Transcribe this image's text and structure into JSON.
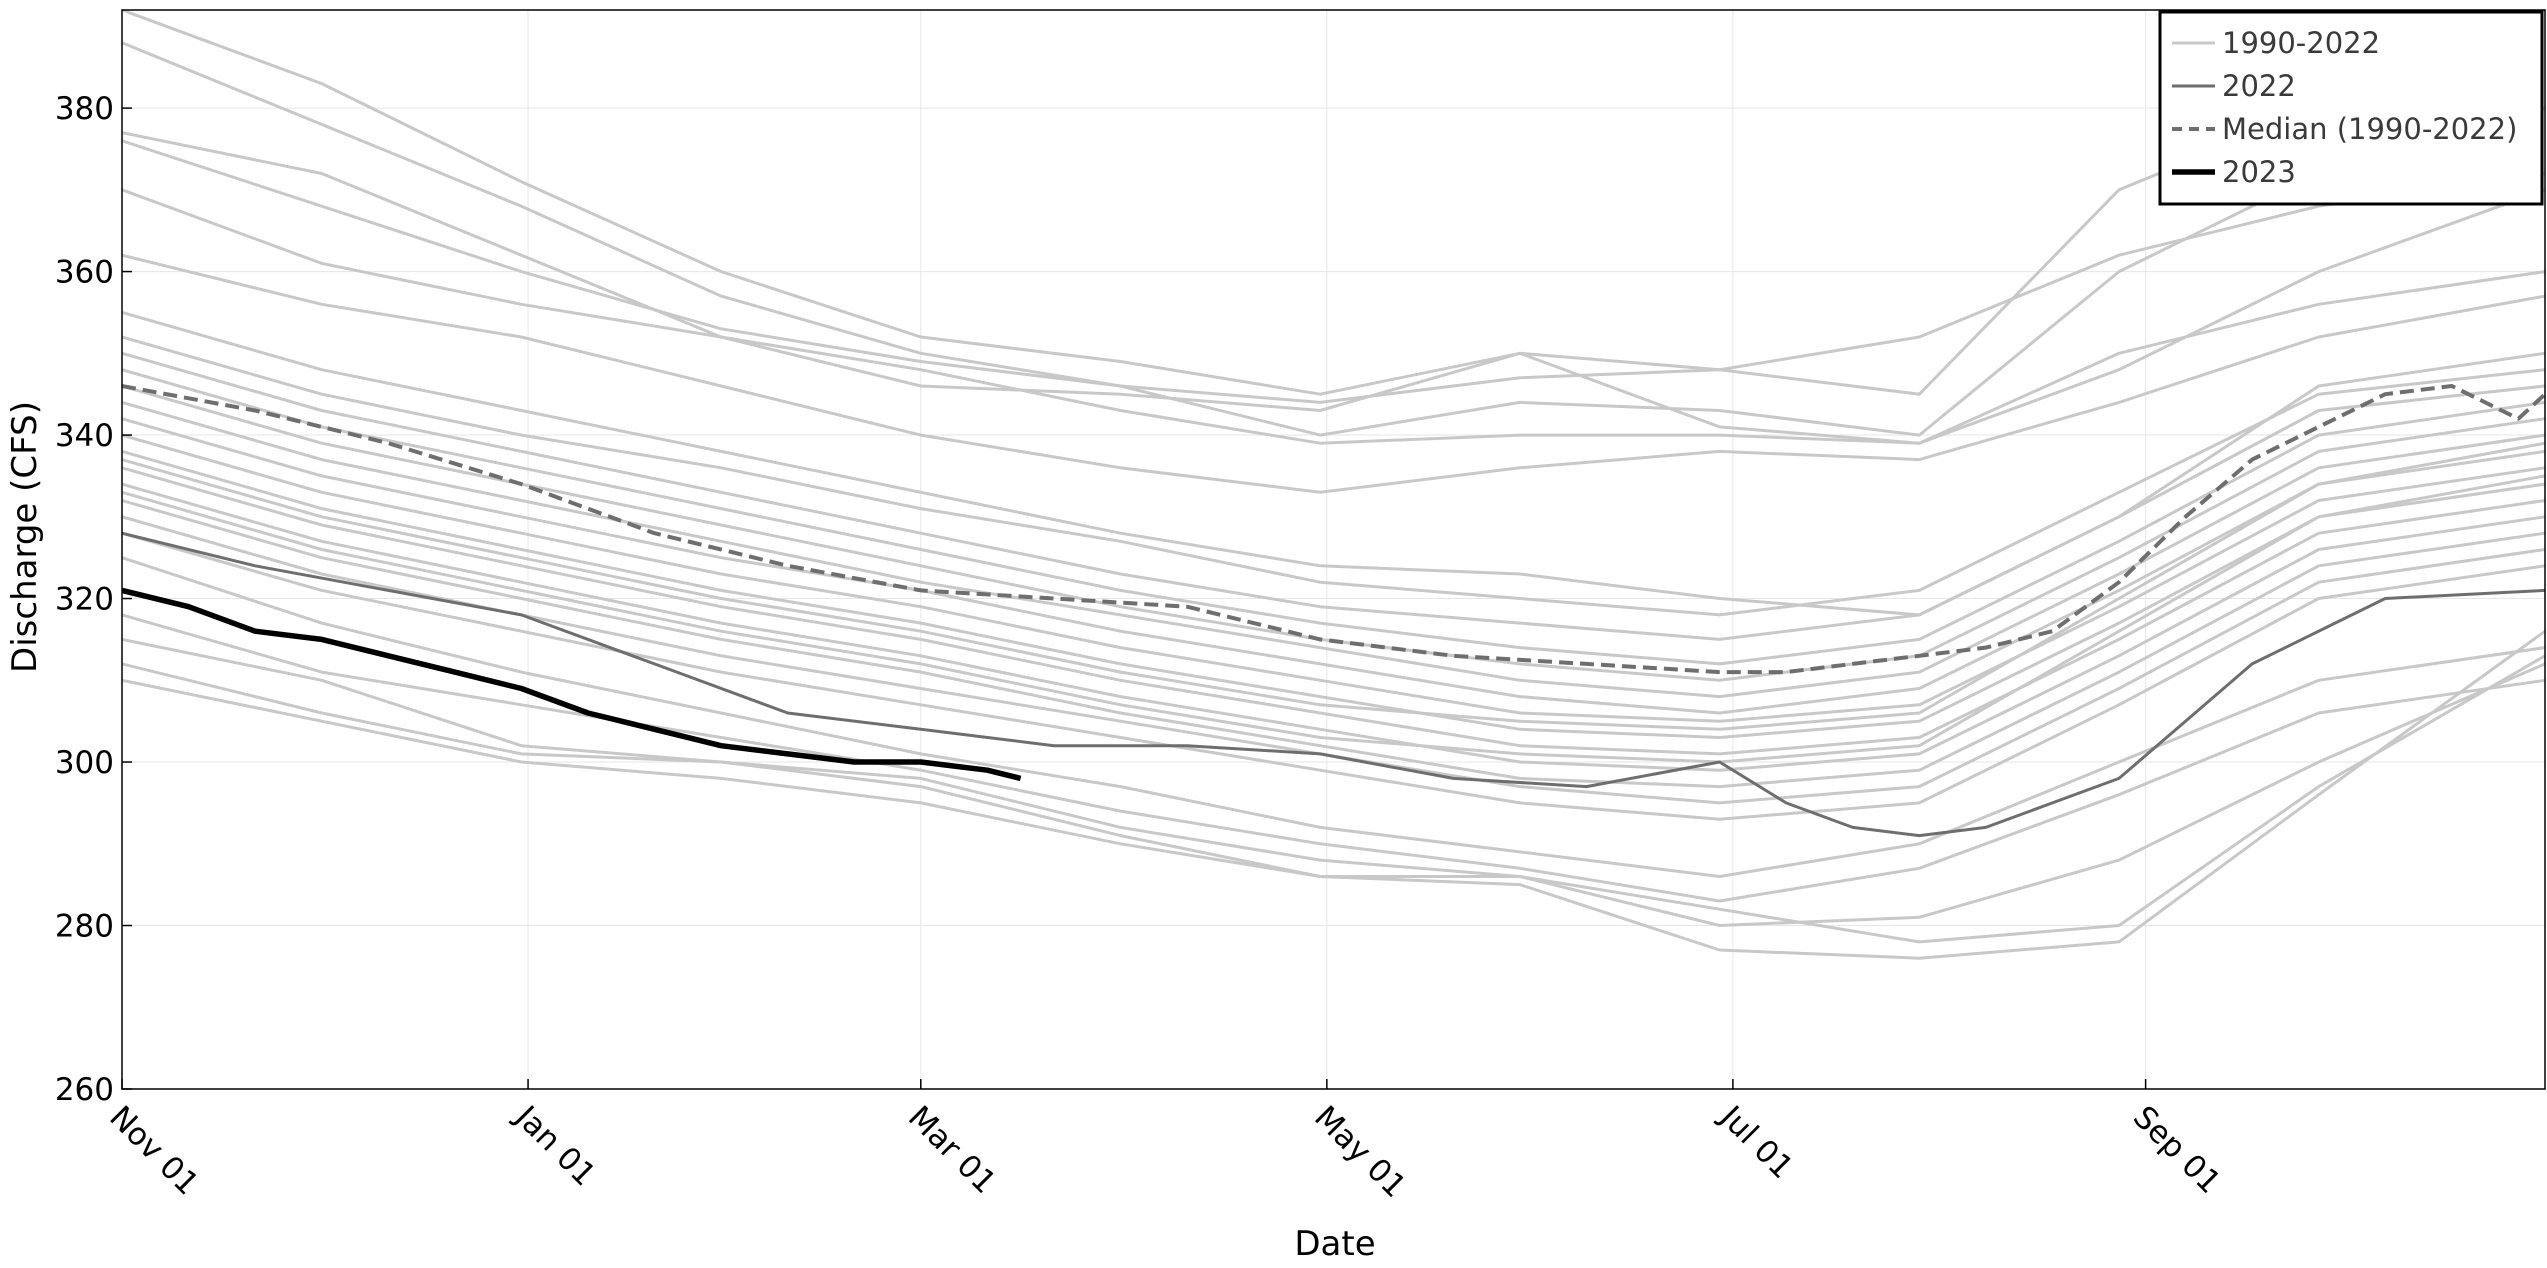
{
  "chart_data": {
    "type": "line",
    "title": "",
    "xlabel": "Date",
    "ylabel": "Discharge (CFS)",
    "ylim": [
      260,
      392
    ],
    "x_domain": [
      "Nov 01",
      "Oct 31"
    ],
    "x_ticks": [
      {
        "label": "Nov 01",
        "day": 0
      },
      {
        "label": "Jan 01",
        "day": 61
      },
      {
        "label": "Mar 01",
        "day": 120
      },
      {
        "label": "May 01",
        "day": 181
      },
      {
        "label": "Jul 01",
        "day": 242
      },
      {
        "label": "Sep 01",
        "day": 304
      }
    ],
    "y_ticks": [
      260,
      280,
      300,
      320,
      340,
      360,
      380
    ],
    "grid": true,
    "legend_position": "top-right",
    "legend": [
      {
        "label": "1990-2022",
        "color": "#c8c8c8",
        "style": "solid-thin"
      },
      {
        "label": "2022",
        "color": "#6e6e6e",
        "style": "solid"
      },
      {
        "label": "Median (1990-2022)",
        "color": "#6e6e6e",
        "style": "dashed"
      },
      {
        "label": "2023",
        "color": "#000000",
        "style": "solid-thick"
      }
    ],
    "historical_years": [
      {
        "name": "1990-2022",
        "x": [
          0,
          30,
          60,
          90,
          120,
          150,
          180,
          210,
          240,
          270,
          300,
          330,
          364
        ],
        "y": [
          392,
          383,
          371,
          360,
          352,
          349,
          345,
          350,
          348,
          345,
          370,
          380,
          392
        ]
      },
      {
        "name": "1990-2022",
        "x": [
          0,
          30,
          60,
          90,
          120,
          150,
          180,
          210,
          240,
          270,
          300,
          330,
          364
        ],
        "y": [
          388,
          378,
          368,
          357,
          350,
          346,
          340,
          344,
          343,
          340,
          360,
          372,
          380
        ]
      },
      {
        "name": "1990-2022",
        "x": [
          0,
          30,
          60,
          90,
          120,
          150,
          180,
          210,
          240,
          270,
          300,
          330,
          364
        ],
        "y": [
          377,
          372,
          362,
          352,
          346,
          345,
          343,
          350,
          341,
          339,
          348,
          360,
          370
        ]
      },
      {
        "name": "1990-2022",
        "x": [
          0,
          30,
          60,
          90,
          120,
          150,
          180,
          210,
          240,
          270,
          300,
          330,
          364
        ],
        "y": [
          376,
          368,
          360,
          353,
          349,
          346,
          344,
          347,
          348,
          352,
          362,
          368,
          372
        ]
      },
      {
        "name": "1990-2022",
        "x": [
          0,
          30,
          60,
          90,
          120,
          150,
          180,
          210,
          240,
          270,
          300,
          330,
          364
        ],
        "y": [
          370,
          361,
          356,
          352,
          348,
          343,
          339,
          340,
          340,
          339,
          350,
          356,
          360
        ]
      },
      {
        "name": "1990-2022",
        "x": [
          0,
          30,
          60,
          90,
          120,
          150,
          180,
          210,
          240,
          270,
          300,
          330,
          364
        ],
        "y": [
          362,
          356,
          352,
          346,
          340,
          336,
          333,
          336,
          338,
          337,
          344,
          352,
          357
        ]
      },
      {
        "name": "1990-2022",
        "x": [
          0,
          30,
          60,
          90,
          120,
          150,
          180,
          210,
          240,
          270,
          300,
          330,
          364
        ],
        "y": [
          355,
          348,
          343,
          338,
          333,
          328,
          324,
          323,
          320,
          318,
          330,
          346,
          350
        ]
      },
      {
        "name": "1990-2022",
        "x": [
          0,
          30,
          60,
          90,
          120,
          150,
          180,
          210,
          240,
          270,
          300,
          330,
          364
        ],
        "y": [
          352,
          345,
          340,
          336,
          331,
          327,
          322,
          320,
          318,
          321,
          333,
          345,
          348
        ]
      },
      {
        "name": "1990-2022",
        "x": [
          0,
          30,
          60,
          90,
          120,
          150,
          180,
          210,
          240,
          270,
          300,
          330,
          364
        ],
        "y": [
          350,
          343,
          338,
          333,
          328,
          323,
          319,
          317,
          315,
          318,
          330,
          343,
          346
        ]
      },
      {
        "name": "1990-2022",
        "x": [
          0,
          30,
          60,
          90,
          120,
          150,
          180,
          210,
          240,
          270,
          300,
          330,
          364
        ],
        "y": [
          348,
          341,
          336,
          331,
          326,
          321,
          317,
          314,
          312,
          315,
          327,
          340,
          344
        ]
      },
      {
        "name": "1990-2022",
        "x": [
          0,
          30,
          60,
          90,
          120,
          150,
          180,
          210,
          240,
          270,
          300,
          330,
          364
        ],
        "y": [
          346,
          339,
          334,
          329,
          324,
          319,
          315,
          312,
          310,
          313,
          325,
          338,
          342
        ]
      },
      {
        "name": "1990-2022",
        "x": [
          0,
          30,
          60,
          90,
          120,
          150,
          180,
          210,
          240,
          270,
          300,
          330,
          364
        ],
        "y": [
          344,
          337,
          332,
          327,
          322,
          318,
          314,
          310,
          308,
          311,
          323,
          336,
          340
        ]
      },
      {
        "name": "1990-2022",
        "x": [
          0,
          30,
          60,
          90,
          120,
          150,
          180,
          210,
          240,
          270,
          300,
          330,
          364
        ],
        "y": [
          342,
          335,
          330,
          325,
          321,
          316,
          312,
          308,
          306,
          309,
          321,
          334,
          338
        ]
      },
      {
        "name": "1990-2022",
        "x": [
          0,
          30,
          60,
          90,
          120,
          150,
          180,
          210,
          240,
          270,
          300,
          330,
          364
        ],
        "y": [
          340,
          333,
          328,
          323,
          319,
          314,
          310,
          306,
          305,
          307,
          319,
          332,
          336
        ]
      },
      {
        "name": "1990-2022",
        "x": [
          0,
          30,
          60,
          90,
          120,
          150,
          180,
          210,
          240,
          270,
          300,
          330,
          364
        ],
        "y": [
          338,
          331,
          326,
          321,
          317,
          312,
          308,
          304,
          303,
          305,
          317,
          330,
          334
        ]
      },
      {
        "name": "1990-2022",
        "x": [
          0,
          30,
          60,
          90,
          120,
          150,
          180,
          210,
          240,
          270,
          300,
          330,
          364
        ],
        "y": [
          336,
          329,
          324,
          319,
          315,
          310,
          306,
          302,
          301,
          303,
          315,
          328,
          332
        ]
      },
      {
        "name": "1990-2022",
        "x": [
          0,
          30,
          60,
          90,
          120,
          150,
          180,
          210,
          240,
          270,
          300,
          330,
          364
        ],
        "y": [
          334,
          327,
          322,
          317,
          313,
          308,
          304,
          300,
          299,
          301,
          313,
          326,
          330
        ]
      },
      {
        "name": "1990-2022",
        "x": [
          0,
          30,
          60,
          90,
          120,
          150,
          180,
          210,
          240,
          270,
          300,
          330,
          364
        ],
        "y": [
          332,
          325,
          320,
          315,
          311,
          306,
          302,
          298,
          297,
          299,
          311,
          324,
          328
        ]
      },
      {
        "name": "1990-2022",
        "x": [
          0,
          30,
          60,
          90,
          120,
          150,
          180,
          210,
          240,
          270,
          300,
          330,
          364
        ],
        "y": [
          330,
          323,
          318,
          313,
          309,
          305,
          301,
          297,
          295,
          297,
          309,
          322,
          326
        ]
      },
      {
        "name": "1990-2022",
        "x": [
          0,
          30,
          60,
          90,
          120,
          150,
          180,
          210,
          240,
          270,
          300,
          330,
          364
        ],
        "y": [
          328,
          321,
          316,
          311,
          307,
          303,
          299,
          295,
          293,
          295,
          307,
          320,
          324
        ]
      },
      {
        "name": "1990-2022",
        "x": [
          0,
          30,
          60,
          90,
          120,
          150,
          180,
          210,
          240,
          270,
          300,
          330,
          364
        ],
        "y": [
          333,
          326,
          321,
          316,
          312,
          307,
          303,
          301,
          300,
          302,
          316,
          330,
          335
        ]
      },
      {
        "name": "1990-2022",
        "x": [
          0,
          30,
          60,
          90,
          120,
          150,
          180,
          210,
          240,
          270,
          300,
          330,
          364
        ],
        "y": [
          337,
          330,
          325,
          320,
          316,
          311,
          307,
          305,
          304,
          306,
          320,
          334,
          339
        ]
      },
      {
        "name": "1990-2022",
        "x": [
          0,
          30,
          60,
          90,
          120,
          150,
          180,
          210,
          240,
          270,
          300,
          330,
          364
        ],
        "y": [
          325,
          317,
          311,
          306,
          301,
          297,
          292,
          289,
          286,
          290,
          300,
          310,
          314
        ]
      },
      {
        "name": "1990-2022",
        "x": [
          0,
          30,
          60,
          90,
          120,
          150,
          180,
          210,
          240,
          270,
          300,
          330,
          364
        ],
        "y": [
          318,
          311,
          307,
          303,
          299,
          294,
          290,
          287,
          283,
          287,
          296,
          306,
          310
        ]
      },
      {
        "name": "1990-2022",
        "x": [
          0,
          30,
          60,
          90,
          120,
          150,
          180,
          210,
          240,
          270,
          300,
          330,
          364
        ],
        "y": [
          315,
          310,
          302,
          300,
          298,
          292,
          288,
          286,
          280,
          281,
          288,
          300,
          312
        ]
      },
      {
        "name": "1990-2022",
        "x": [
          0,
          30,
          60,
          90,
          120,
          150,
          180,
          210,
          240,
          270,
          300,
          330,
          364
        ],
        "y": [
          312,
          306,
          301,
          300,
          297,
          291,
          286,
          286,
          282,
          278,
          280,
          297,
          313
        ]
      },
      {
        "name": "1990-2022",
        "x": [
          0,
          30,
          60,
          90,
          120,
          150,
          180,
          210,
          240,
          270,
          300,
          330,
          364
        ],
        "y": [
          310,
          305,
          300,
          298,
          295,
          290,
          286,
          285,
          277,
          276,
          278,
          296,
          316
        ]
      }
    ],
    "series": [
      {
        "name": "2022",
        "x": [
          0,
          20,
          40,
          60,
          80,
          100,
          120,
          140,
          160,
          180,
          200,
          220,
          240,
          250,
          260,
          270,
          280,
          290,
          300,
          310,
          320,
          340,
          364
        ],
        "y": [
          328,
          324,
          321,
          318,
          312,
          306,
          304,
          302,
          302,
          301,
          298,
          297,
          300,
          295,
          292,
          291,
          292,
          295,
          298,
          305,
          312,
          320,
          321
        ]
      },
      {
        "name": "Median (1990-2022)",
        "x": [
          0,
          20,
          40,
          60,
          80,
          100,
          120,
          140,
          160,
          180,
          200,
          220,
          240,
          250,
          260,
          270,
          280,
          290,
          300,
          310,
          320,
          340,
          350,
          360,
          364
        ],
        "y": [
          346,
          343,
          339,
          334,
          328,
          324,
          321,
          320,
          319,
          315,
          313,
          312,
          311,
          311,
          312,
          313,
          314,
          316,
          322,
          330,
          337,
          345,
          346,
          342,
          345
        ]
      },
      {
        "name": "2023",
        "x": [
          0,
          10,
          20,
          30,
          40,
          50,
          60,
          70,
          80,
          90,
          100,
          110,
          120,
          130,
          135
        ],
        "y": [
          321,
          319,
          316,
          315,
          313,
          311,
          309,
          306,
          304,
          302,
          301,
          300,
          300,
          299,
          298
        ]
      }
    ]
  }
}
